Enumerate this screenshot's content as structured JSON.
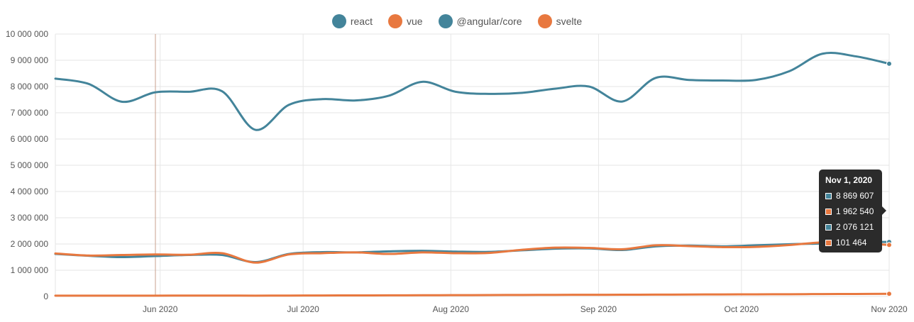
{
  "legend": [
    {
      "name": "react",
      "color": "#43849a"
    },
    {
      "name": "vue",
      "color": "#e8783f"
    },
    {
      "name": "@angular/core",
      "color": "#43849a"
    },
    {
      "name": "svelte",
      "color": "#e8783f"
    }
  ],
  "tooltip": {
    "title": "Nov 1, 2020",
    "rows": [
      {
        "value": "8 869 607",
        "color": "#43849a"
      },
      {
        "value": "1 962 540",
        "color": "#e8783f"
      },
      {
        "value": "2 076 121",
        "color": "#43849a"
      },
      {
        "value": "101 464",
        "color": "#e8783f"
      }
    ]
  },
  "chart_data": {
    "type": "line",
    "title": "",
    "xlabel": "",
    "ylabel": "",
    "ylim": [
      0,
      10000000
    ],
    "grid": true,
    "legend_position": "top-center",
    "x_ticks": [
      "Jun 2020",
      "Jul 2020",
      "Aug 2020",
      "Sep 2020",
      "Oct 2020",
      "Nov 2020"
    ],
    "y_ticks": [
      "0",
      "1 000 000",
      "2 000 000",
      "3 000 000",
      "4 000 000",
      "5 000 000",
      "6 000 000",
      "7 000 000",
      "8 000 000",
      "9 000 000",
      "10 000 000"
    ],
    "x": [
      "2020-05-10",
      "2020-05-17",
      "2020-05-24",
      "2020-05-31",
      "2020-06-07",
      "2020-06-14",
      "2020-06-21",
      "2020-06-28",
      "2020-07-05",
      "2020-07-12",
      "2020-07-19",
      "2020-07-26",
      "2020-08-02",
      "2020-08-09",
      "2020-08-16",
      "2020-08-23",
      "2020-08-30",
      "2020-09-06",
      "2020-09-13",
      "2020-09-20",
      "2020-09-27",
      "2020-10-04",
      "2020-10-11",
      "2020-10-18",
      "2020-10-25",
      "2020-11-01"
    ],
    "series": [
      {
        "name": "react",
        "color": "#43849a",
        "values": [
          8300000,
          8100000,
          7420000,
          7780000,
          7800000,
          7820000,
          6350000,
          7300000,
          7520000,
          7470000,
          7650000,
          8180000,
          7800000,
          7720000,
          7760000,
          7920000,
          8000000,
          7430000,
          8330000,
          8250000,
          8230000,
          8250000,
          8580000,
          9250000,
          9150000,
          8869607
        ]
      },
      {
        "name": "vue",
        "color": "#e8783f",
        "values": [
          1640000,
          1560000,
          1580000,
          1600000,
          1590000,
          1650000,
          1290000,
          1600000,
          1650000,
          1680000,
          1620000,
          1680000,
          1650000,
          1660000,
          1780000,
          1860000,
          1850000,
          1800000,
          1950000,
          1920000,
          1880000,
          1890000,
          1960000,
          2060000,
          2040000,
          1962540
        ]
      },
      {
        "name": "@angular/core",
        "color": "#43849a",
        "values": [
          1620000,
          1550000,
          1500000,
          1540000,
          1580000,
          1580000,
          1310000,
          1620000,
          1690000,
          1680000,
          1720000,
          1740000,
          1710000,
          1700000,
          1760000,
          1820000,
          1830000,
          1770000,
          1910000,
          1940000,
          1910000,
          1950000,
          1990000,
          2020000,
          2080000,
          2076121
        ]
      },
      {
        "name": "svelte",
        "color": "#e8783f",
        "values": [
          30000,
          31000,
          31000,
          32000,
          33000,
          34000,
          32000,
          35000,
          38000,
          40000,
          43000,
          46000,
          50000,
          54000,
          58000,
          62000,
          64000,
          66000,
          70000,
          74000,
          78000,
          82000,
          86000,
          92000,
          96000,
          101464
        ]
      }
    ]
  }
}
